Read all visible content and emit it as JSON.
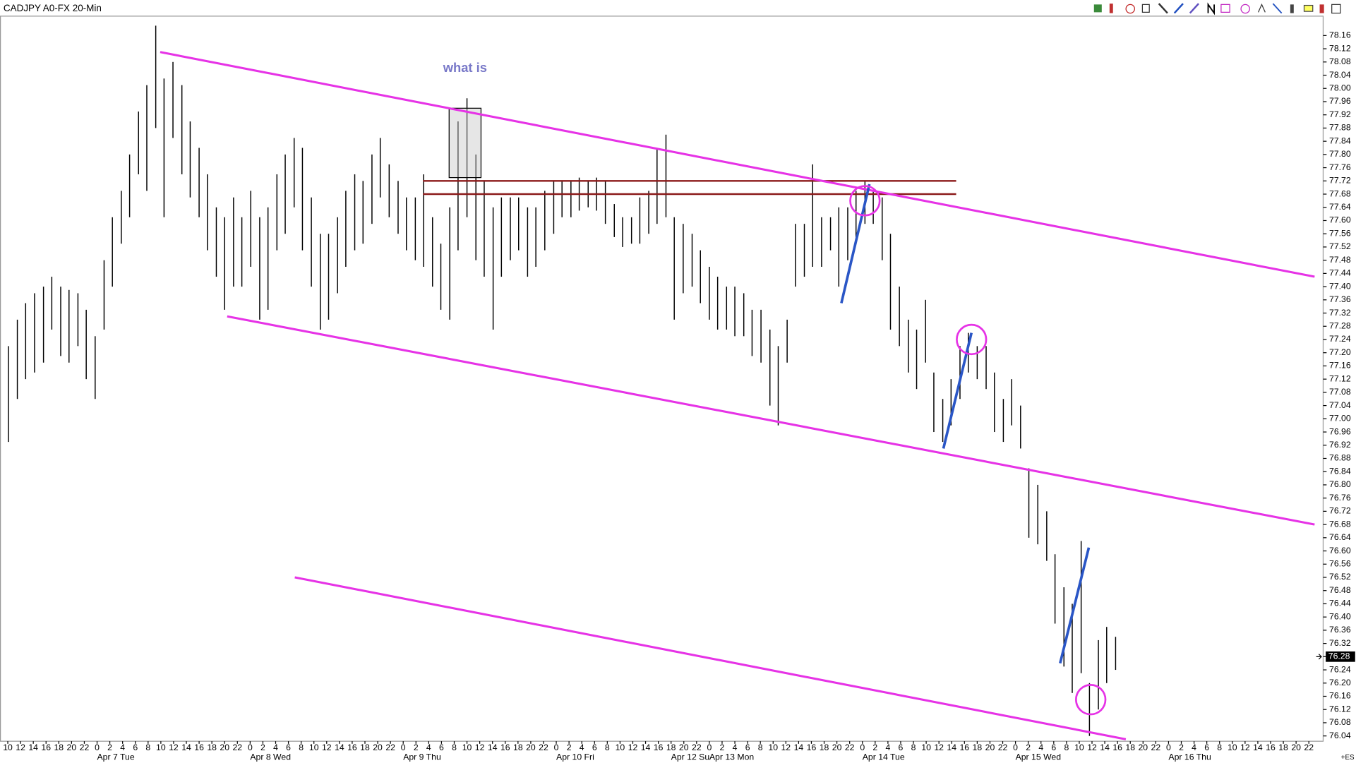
{
  "chart_data": {
    "type": "ohlc",
    "title": "CADJPY A0-FX 20-Min",
    "color": "#000000",
    "x": [
      0.1,
      1.5,
      2.8,
      4.2,
      5.6,
      6.9,
      8.3,
      9.6,
      11.0,
      12.3,
      13.7,
      15.1,
      16.4,
      17.8,
      19.1,
      20.5,
      21.8,
      23.2,
      24.5,
      25.9,
      27.3,
      28.6,
      30.0,
      31.3,
      32.7,
      34.0,
      35.4,
      36.7,
      38.1,
      39.5,
      40.8,
      42.2,
      43.5,
      44.9,
      46.2,
      47.6,
      49.0,
      50.3,
      51.7,
      53.0,
      54.4,
      55.7,
      57.1,
      58.4,
      59.8,
      61.2,
      62.5,
      63.9,
      65.2,
      66.6,
      67.9,
      69.3,
      70.6,
      72.0,
      73.4,
      74.7,
      76.1,
      77.4,
      78.8,
      80.1,
      81.5,
      82.8,
      84.2,
      85.6,
      86.9,
      88.3,
      89.6,
      91.0,
      92.3,
      93.7,
      95.1,
      96.4,
      97.8,
      99.1,
      100.5,
      101.8,
      103.2,
      104.5,
      105.9,
      107.3,
      108.6,
      110.0,
      111.3,
      112.7,
      114.0,
      115.4,
      116.7,
      118.1,
      119.5,
      120.8,
      122.2,
      123.5,
      124.9,
      126.2,
      127.6,
      129.0,
      130.3,
      131.7,
      133.0,
      134.4,
      135.7,
      137.1,
      138.4,
      139.8,
      141.2,
      142.5,
      143.9,
      145.2,
      146.6,
      147.9,
      149.3,
      150.6,
      152.0,
      153.4,
      154.7,
      156.1,
      157.4,
      158.8,
      160.1,
      161.5,
      162.9,
      164.2,
      165.6,
      166.9,
      168.3,
      169.6,
      171.0,
      172.3,
      173.7
    ],
    "high": [
      77.22,
      77.3,
      77.35,
      77.38,
      77.4,
      77.43,
      77.4,
      77.39,
      77.38,
      77.33,
      77.25,
      77.48,
      77.61,
      77.69,
      77.8,
      77.93,
      78.01,
      78.19,
      78.03,
      78.08,
      78.01,
      77.9,
      77.82,
      77.74,
      77.64,
      77.61,
      77.67,
      77.61,
      77.69,
      77.61,
      77.64,
      77.74,
      77.8,
      77.85,
      77.82,
      77.67,
      77.56,
      77.56,
      77.61,
      77.69,
      77.74,
      77.72,
      77.8,
      77.85,
      77.77,
      77.72,
      77.67,
      77.67,
      77.74,
      77.61,
      77.53,
      77.64,
      77.9,
      77.97,
      77.8,
      77.72,
      77.64,
      77.67,
      77.67,
      77.67,
      77.64,
      77.64,
      77.69,
      77.72,
      77.72,
      77.72,
      77.73,
      77.72,
      77.73,
      77.72,
      77.65,
      77.61,
      77.61,
      77.67,
      77.69,
      77.82,
      77.86,
      77.61,
      77.59,
      77.56,
      77.51,
      77.46,
      77.43,
      77.4,
      77.4,
      77.38,
      77.33,
      77.33,
      77.27,
      77.22,
      77.3,
      77.59,
      77.59,
      77.77,
      77.61,
      77.61,
      77.64,
      77.64,
      77.69,
      77.72,
      77.69,
      77.67,
      77.56,
      77.4,
      77.3,
      77.27,
      77.36,
      77.14,
      77.06,
      77.12,
      77.22,
      77.26,
      77.22,
      77.22,
      77.14,
      77.06,
      77.12,
      77.04,
      76.85,
      76.8,
      76.72,
      76.59,
      76.49,
      76.44,
      76.63,
      76.2,
      76.33,
      76.37,
      76.34
    ],
    "low": [
      76.93,
      77.06,
      77.12,
      77.14,
      77.17,
      77.27,
      77.19,
      77.17,
      77.22,
      77.12,
      77.06,
      77.27,
      77.4,
      77.53,
      77.61,
      77.74,
      77.69,
      77.88,
      77.61,
      77.85,
      77.74,
      77.67,
      77.61,
      77.51,
      77.43,
      77.33,
      77.4,
      77.4,
      77.46,
      77.3,
      77.33,
      77.51,
      77.56,
      77.64,
      77.51,
      77.4,
      77.27,
      77.3,
      77.38,
      77.46,
      77.51,
      77.53,
      77.59,
      77.67,
      77.61,
      77.56,
      77.51,
      77.48,
      77.46,
      77.4,
      77.33,
      77.3,
      77.51,
      77.61,
      77.48,
      77.43,
      77.27,
      77.43,
      77.48,
      77.51,
      77.43,
      77.46,
      77.51,
      77.56,
      77.61,
      77.61,
      77.63,
      77.64,
      77.63,
      77.59,
      77.55,
      77.52,
      77.53,
      77.53,
      77.56,
      77.59,
      77.61,
      77.3,
      77.38,
      77.4,
      77.35,
      77.3,
      77.27,
      77.27,
      77.25,
      77.25,
      77.19,
      77.17,
      77.04,
      76.98,
      77.17,
      77.4,
      77.43,
      77.46,
      77.46,
      77.51,
      77.4,
      77.48,
      77.53,
      77.59,
      77.59,
      77.48,
      77.27,
      77.22,
      77.14,
      77.09,
      77.17,
      76.96,
      76.93,
      76.98,
      77.06,
      77.14,
      77.12,
      77.09,
      76.96,
      76.93,
      76.98,
      76.91,
      76.64,
      76.62,
      76.57,
      76.38,
      76.25,
      76.17,
      76.23,
      76.04,
      76.12,
      76.2,
      76.24
    ],
    "xlim": [
      -1.22,
      206.24
    ],
    "ylim": [
      76.024,
      78.22
    ],
    "xticks": [
      {
        "value": 0,
        "label": "10"
      },
      {
        "value": 2,
        "label": "12"
      },
      {
        "value": 4,
        "label": "14"
      },
      {
        "value": 6,
        "label": "16"
      },
      {
        "value": 8,
        "label": "18"
      },
      {
        "value": 10,
        "label": "20"
      },
      {
        "value": 12,
        "label": "22"
      },
      {
        "value": 14,
        "label": "0"
      },
      {
        "value": 16,
        "label": "2"
      },
      {
        "value": 18,
        "label": "4"
      },
      {
        "value": 20,
        "label": "6"
      },
      {
        "value": 22,
        "label": "8"
      },
      {
        "value": 24,
        "label": "10"
      },
      {
        "value": 26,
        "label": "12"
      },
      {
        "value": 28,
        "label": "14"
      },
      {
        "value": 30,
        "label": "16"
      },
      {
        "value": 32,
        "label": "18"
      },
      {
        "value": 34,
        "label": "20"
      },
      {
        "value": 36,
        "label": "22"
      },
      {
        "value": 38,
        "label": "0"
      },
      {
        "value": 40,
        "label": "2"
      },
      {
        "value": 42,
        "label": "4"
      },
      {
        "value": 44,
        "label": "6"
      },
      {
        "value": 46,
        "label": "8"
      },
      {
        "value": 48,
        "label": "10"
      },
      {
        "value": 50,
        "label": "12"
      },
      {
        "value": 52,
        "label": "14"
      },
      {
        "value": 54,
        "label": "16"
      },
      {
        "value": 56,
        "label": "18"
      },
      {
        "value": 58,
        "label": "20"
      },
      {
        "value": 60,
        "label": "22"
      },
      {
        "value": 62,
        "label": "0"
      },
      {
        "value": 64,
        "label": "2"
      },
      {
        "value": 66,
        "label": "4"
      },
      {
        "value": 68,
        "label": "6"
      },
      {
        "value": 70,
        "label": "8"
      },
      {
        "value": 72,
        "label": "10"
      },
      {
        "value": 74,
        "label": "12"
      },
      {
        "value": 76,
        "label": "14"
      },
      {
        "value": 78,
        "label": "16"
      },
      {
        "value": 80,
        "label": "18"
      },
      {
        "value": 82,
        "label": "20"
      },
      {
        "value": 84,
        "label": "22"
      },
      {
        "value": 86,
        "label": "0"
      },
      {
        "value": 88,
        "label": "2"
      },
      {
        "value": 90,
        "label": "4"
      },
      {
        "value": 92,
        "label": "6"
      },
      {
        "value": 94,
        "label": "8"
      },
      {
        "value": 96,
        "label": "10"
      },
      {
        "value": 98,
        "label": "12"
      },
      {
        "value": 100,
        "label": "14"
      },
      {
        "value": 102,
        "label": "16"
      },
      {
        "value": 104,
        "label": "18"
      },
      {
        "value": 106,
        "label": "20"
      },
      {
        "value": 108,
        "label": "22"
      },
      {
        "value": 110,
        "label": "0"
      },
      {
        "value": 112,
        "label": "2"
      },
      {
        "value": 114,
        "label": "4"
      },
      {
        "value": 116,
        "label": "6"
      },
      {
        "value": 118,
        "label": "8"
      },
      {
        "value": 120,
        "label": "10"
      },
      {
        "value": 122,
        "label": "12"
      },
      {
        "value": 124,
        "label": "14"
      },
      {
        "value": 126,
        "label": "16"
      },
      {
        "value": 128,
        "label": "18"
      },
      {
        "value": 130,
        "label": "20"
      },
      {
        "value": 132,
        "label": "22"
      },
      {
        "value": 134,
        "label": "0"
      },
      {
        "value": 136,
        "label": "2"
      },
      {
        "value": 138,
        "label": "4"
      },
      {
        "value": 140,
        "label": "6"
      },
      {
        "value": 142,
        "label": "8"
      },
      {
        "value": 144,
        "label": "10"
      },
      {
        "value": 146,
        "label": "12"
      },
      {
        "value": 148,
        "label": "14"
      },
      {
        "value": 150,
        "label": "16"
      },
      {
        "value": 152,
        "label": "18"
      },
      {
        "value": 154,
        "label": "20"
      },
      {
        "value": 156,
        "label": "22"
      },
      {
        "value": 158,
        "label": "0"
      },
      {
        "value": 160,
        "label": "2"
      },
      {
        "value": 162,
        "label": "4"
      },
      {
        "value": 164,
        "label": "6"
      },
      {
        "value": 166,
        "label": "8"
      },
      {
        "value": 168,
        "label": "10"
      },
      {
        "value": 170,
        "label": "12"
      },
      {
        "value": 172,
        "label": "14"
      },
      {
        "value": 174,
        "label": "16"
      },
      {
        "value": 176,
        "label": "18"
      },
      {
        "value": 178,
        "label": "20"
      },
      {
        "value": 180,
        "label": "22"
      },
      {
        "value": 182,
        "label": "0"
      },
      {
        "value": 184,
        "label": "2"
      },
      {
        "value": 186,
        "label": "4"
      },
      {
        "value": 188,
        "label": "6"
      },
      {
        "value": 190,
        "label": "8"
      },
      {
        "value": 192,
        "label": "10"
      },
      {
        "value": 194,
        "label": "12"
      },
      {
        "value": 196,
        "label": "14"
      },
      {
        "value": 198,
        "label": "16"
      },
      {
        "value": 200,
        "label": "18"
      },
      {
        "value": 202,
        "label": "20"
      },
      {
        "value": 204,
        "label": "22"
      }
    ],
    "date_labels": [
      {
        "value": 14,
        "label": "Apr 7 Tue"
      },
      {
        "value": 38,
        "label": "Apr 8 Wed"
      },
      {
        "value": 62,
        "label": "Apr 9 Thu"
      },
      {
        "value": 86,
        "label": "Apr 10 Fri"
      },
      {
        "value": 104,
        "label": "Apr 12 Su"
      },
      {
        "value": 110,
        "label": "Apr 13 Mon"
      },
      {
        "value": 134,
        "label": "Apr 14 Tue"
      },
      {
        "value": 158,
        "label": "Apr 15 Wed"
      },
      {
        "value": 182,
        "label": "Apr 16 Thu"
      }
    ],
    "yticks": [
      76.04,
      76.08,
      76.12,
      76.16,
      {
        "value": 76.2,
        "label": "76.20"
      },
      76.24,
      76.28,
      76.32,
      76.36,
      {
        "value": 76.4,
        "label": "76.40"
      },
      76.44,
      76.48,
      76.52,
      76.56,
      {
        "value": 76.6,
        "label": "76.60"
      },
      76.64,
      76.68,
      76.72,
      76.76,
      {
        "value": 76.8,
        "label": "76.80"
      },
      76.84,
      76.88,
      76.92,
      76.96,
      {
        "value": 77,
        "label": "77.00"
      },
      77.04,
      77.08,
      77.12,
      77.16,
      {
        "value": 77.2,
        "label": "77.20"
      },
      77.24,
      77.28,
      77.32,
      77.36,
      {
        "value": 77.4,
        "label": "77.40"
      },
      77.44,
      77.48,
      77.52,
      77.56,
      {
        "value": 77.6,
        "label": "77.60"
      },
      77.64,
      77.68,
      77.72,
      77.76,
      {
        "value": 77.8,
        "label": "77.80"
      },
      77.84,
      77.88,
      77.92,
      77.96,
      {
        "value": 78,
        "label": "78.00"
      },
      78.04,
      78.08,
      78.12,
      78.16
    ],
    "last_price": 76.28,
    "corner_text": "+ES",
    "annotation": {
      "text": "what is",
      "x": 71.7,
      "y": 78.06,
      "color": "#7878c8"
    },
    "drawings": {
      "channel_color": "#e633e6",
      "channels": [
        {
          "x": [
            23.9,
            204.9
          ],
          "y": [
            78.11,
            77.43
          ]
        },
        {
          "x": [
            34.4,
            204.9
          ],
          "y": [
            77.31,
            76.68
          ]
        },
        {
          "x": [
            45.0,
            175.3
          ],
          "y": [
            76.52,
            76.03
          ]
        }
      ],
      "level_color": "#8b1a1a",
      "levels": {
        "x": [
          65.1,
          148.7
        ],
        "y": [
          77.72,
          77.68
        ]
      },
      "blue_color": "#2a56c6",
      "blue_lines": [
        {
          "x": [
            130.7,
            135.1
          ],
          "y": [
            77.35,
            77.71
          ]
        },
        {
          "x": [
            146.7,
            151.1
          ],
          "y": [
            76.91,
            77.26
          ]
        },
        {
          "x": [
            165.0,
            169.5
          ],
          "y": [
            76.26,
            76.61
          ]
        }
      ],
      "circles": [
        {
          "x": 134.4,
          "y": 77.66
        },
        {
          "x": 151.1,
          "y": 77.24
        },
        {
          "x": 169.8,
          "y": 76.15
        }
      ],
      "box": {
        "x": [
          69.2,
          74.2
        ],
        "y": [
          77.94,
          77.73
        ]
      }
    }
  }
}
